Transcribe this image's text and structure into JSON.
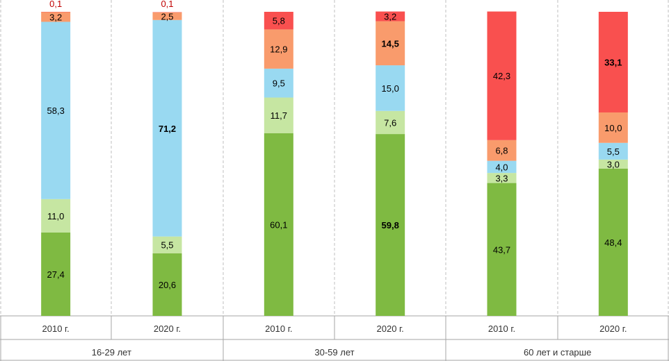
{
  "chart_data": {
    "type": "bar",
    "stacked": true,
    "groups": [
      {
        "label": "16-29 лет",
        "categories": [
          "2010 г.",
          "2020 г."
        ]
      },
      {
        "label": "30-59 лет",
        "categories": [
          "2010 г.",
          "2020 г."
        ]
      },
      {
        "label": "60 лет и старше",
        "categories": [
          "2010 г.",
          "2020 г."
        ]
      }
    ],
    "categories": [
      "2010 г.",
      "2020 г.",
      "2010 г.",
      "2020 г.",
      "2010 г.",
      "2020 г."
    ],
    "series": [
      {
        "color": "#7fba42",
        "values": [
          27.4,
          20.6,
          60.1,
          59.8,
          43.7,
          48.4
        ],
        "labels": [
          "27,4",
          "20,6",
          "60,1",
          "59,8",
          "43,7",
          "48,4"
        ],
        "bold": [
          false,
          false,
          false,
          true,
          false,
          false
        ]
      },
      {
        "color": "#c6e6a2",
        "values": [
          11.0,
          5.5,
          11.7,
          7.6,
          3.3,
          3.0
        ],
        "labels": [
          "11,0",
          "5,5",
          "11,7",
          "7,6",
          "3,3",
          "3,0"
        ],
        "bold": [
          false,
          false,
          false,
          false,
          false,
          false
        ]
      },
      {
        "color": "#99d9f1",
        "values": [
          58.3,
          71.2,
          9.5,
          15.0,
          4.0,
          5.5
        ],
        "labels": [
          "58,3",
          "71,2",
          "9,5",
          "15,0",
          "4,0",
          "5,5"
        ],
        "bold": [
          false,
          true,
          false,
          false,
          false,
          false
        ]
      },
      {
        "color": "#f99b6c",
        "values": [
          3.2,
          2.5,
          12.9,
          14.5,
          6.8,
          10.0
        ],
        "labels": [
          "3,2",
          "2,5",
          "12,9",
          "14,5",
          "6,8",
          "10,0"
        ],
        "bold": [
          false,
          false,
          false,
          true,
          false,
          false
        ]
      },
      {
        "color": "#f9504f",
        "values": [
          0.1,
          0.1,
          5.8,
          3.2,
          42.3,
          33.1
        ],
        "labels": [
          "0,1",
          "0,1",
          "5,8",
          "3,2",
          "42,3",
          "33,1"
        ],
        "bold": [
          false,
          false,
          false,
          false,
          false,
          true
        ],
        "label_outside": [
          true,
          true,
          false,
          false,
          false,
          false
        ],
        "outside_label_color": "#c00000"
      }
    ],
    "ylim": [
      0,
      100
    ],
    "grid": false
  }
}
